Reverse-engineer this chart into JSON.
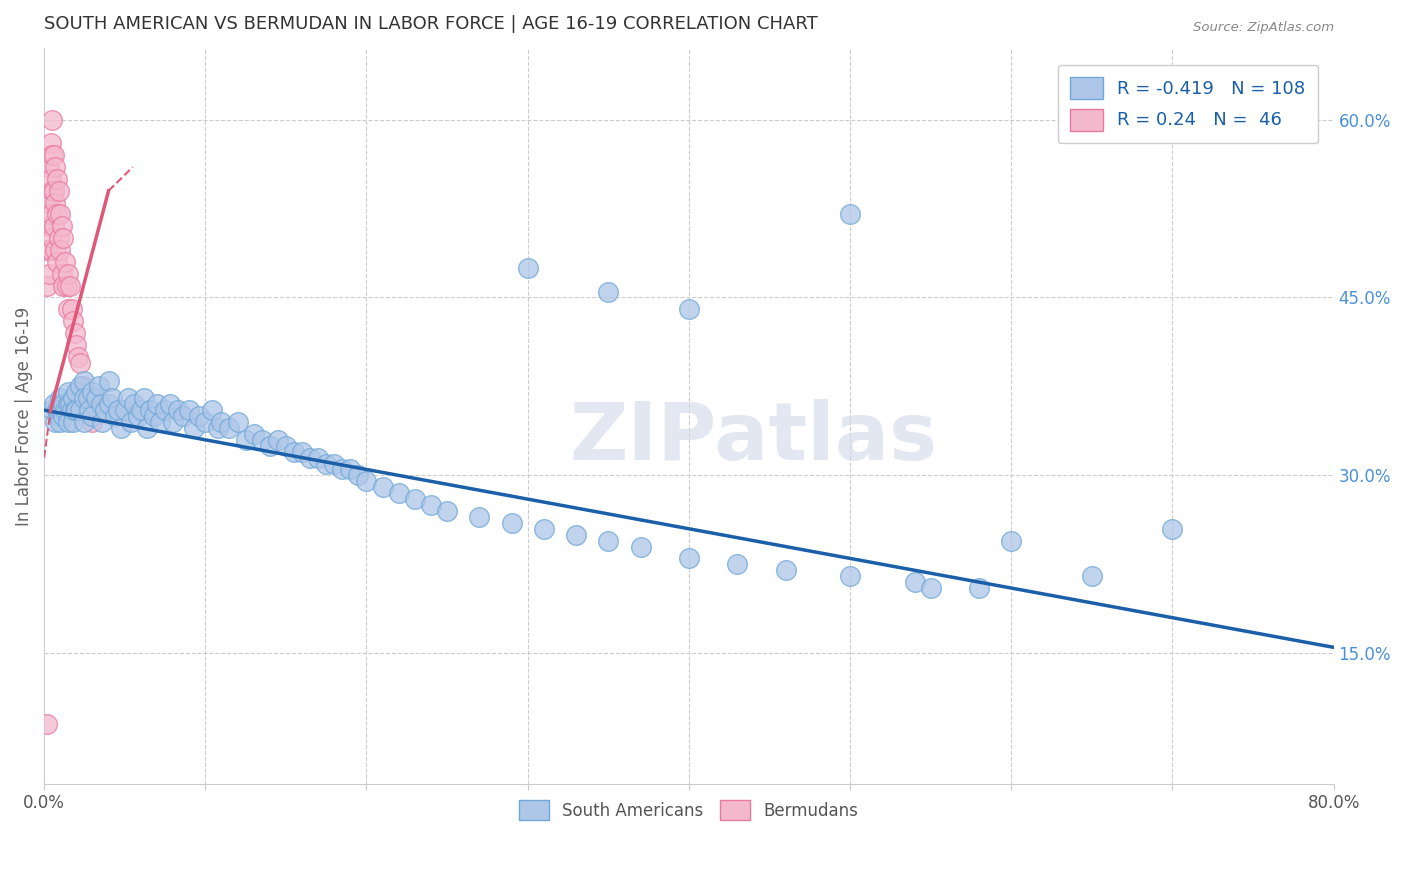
{
  "title": "SOUTH AMERICAN VS BERMUDAN IN LABOR FORCE | AGE 16-19 CORRELATION CHART",
  "source": "Source: ZipAtlas.com",
  "ylabel": "In Labor Force | Age 16-19",
  "xlim": [
    0.0,
    0.8
  ],
  "ylim": [
    0.04,
    0.66
  ],
  "xtick_pos": [
    0.0,
    0.1,
    0.2,
    0.3,
    0.4,
    0.5,
    0.6,
    0.7,
    0.8
  ],
  "xticklabels": [
    "0.0%",
    "",
    "",
    "",
    "",
    "",
    "",
    "",
    "80.0%"
  ],
  "yticks_right": [
    0.15,
    0.3,
    0.45,
    0.6
  ],
  "ytick_right_labels": [
    "15.0%",
    "30.0%",
    "45.0%",
    "60.0%"
  ],
  "blue_color": "#aec6e8",
  "blue_edge": "#6fa8d8",
  "pink_color": "#f4b8cc",
  "pink_edge": "#e87aa0",
  "blue_line_color": "#1a5fa8",
  "pink_line_color": "#e05878",
  "watermark": "ZIPatlas",
  "blue_R": -0.419,
  "blue_N": 108,
  "pink_R": 0.24,
  "pink_N": 46,
  "blue_line_x0": 0.0,
  "blue_line_y0": 0.355,
  "blue_line_x1": 0.8,
  "blue_line_y1": 0.155,
  "pink_line_x0": 0.0,
  "pink_line_y0": 0.315,
  "pink_line_x1": 0.055,
  "pink_line_y1": 0.56,
  "pink_line_solid_x0": 0.004,
  "pink_line_solid_y0": 0.355,
  "pink_line_solid_x1": 0.04,
  "pink_line_solid_y1": 0.54,
  "blue_scatter_x": [
    0.005,
    0.006,
    0.007,
    0.008,
    0.009,
    0.01,
    0.01,
    0.01,
    0.012,
    0.012,
    0.013,
    0.015,
    0.015,
    0.015,
    0.016,
    0.017,
    0.018,
    0.018,
    0.019,
    0.02,
    0.02,
    0.022,
    0.022,
    0.025,
    0.025,
    0.025,
    0.027,
    0.028,
    0.03,
    0.03,
    0.032,
    0.034,
    0.035,
    0.036,
    0.038,
    0.04,
    0.04,
    0.042,
    0.044,
    0.046,
    0.048,
    0.05,
    0.052,
    0.054,
    0.056,
    0.058,
    0.06,
    0.062,
    0.064,
    0.066,
    0.068,
    0.07,
    0.072,
    0.075,
    0.078,
    0.08,
    0.083,
    0.086,
    0.09,
    0.093,
    0.096,
    0.1,
    0.104,
    0.108,
    0.11,
    0.115,
    0.12,
    0.125,
    0.13,
    0.135,
    0.14,
    0.145,
    0.15,
    0.155,
    0.16,
    0.165,
    0.17,
    0.175,
    0.18,
    0.185,
    0.19,
    0.195,
    0.2,
    0.21,
    0.22,
    0.23,
    0.24,
    0.25,
    0.27,
    0.29,
    0.31,
    0.33,
    0.35,
    0.37,
    0.4,
    0.43,
    0.46,
    0.5,
    0.54,
    0.58,
    0.4,
    0.6,
    0.5,
    0.35,
    0.3,
    0.55,
    0.65,
    0.7
  ],
  "blue_scatter_y": [
    0.355,
    0.36,
    0.345,
    0.355,
    0.35,
    0.365,
    0.355,
    0.345,
    0.36,
    0.35,
    0.355,
    0.37,
    0.36,
    0.345,
    0.36,
    0.355,
    0.365,
    0.345,
    0.355,
    0.37,
    0.355,
    0.375,
    0.355,
    0.38,
    0.365,
    0.345,
    0.365,
    0.355,
    0.37,
    0.35,
    0.365,
    0.375,
    0.36,
    0.345,
    0.355,
    0.38,
    0.36,
    0.365,
    0.35,
    0.355,
    0.34,
    0.355,
    0.365,
    0.345,
    0.36,
    0.35,
    0.355,
    0.365,
    0.34,
    0.355,
    0.35,
    0.36,
    0.345,
    0.355,
    0.36,
    0.345,
    0.355,
    0.35,
    0.355,
    0.34,
    0.35,
    0.345,
    0.355,
    0.34,
    0.345,
    0.34,
    0.345,
    0.33,
    0.335,
    0.33,
    0.325,
    0.33,
    0.325,
    0.32,
    0.32,
    0.315,
    0.315,
    0.31,
    0.31,
    0.305,
    0.305,
    0.3,
    0.295,
    0.29,
    0.285,
    0.28,
    0.275,
    0.27,
    0.265,
    0.26,
    0.255,
    0.25,
    0.245,
    0.24,
    0.23,
    0.225,
    0.22,
    0.215,
    0.21,
    0.205,
    0.44,
    0.245,
    0.52,
    0.455,
    0.475,
    0.205,
    0.215,
    0.255
  ],
  "pink_scatter_x": [
    0.002,
    0.002,
    0.003,
    0.003,
    0.003,
    0.003,
    0.004,
    0.004,
    0.004,
    0.004,
    0.005,
    0.005,
    0.005,
    0.005,
    0.006,
    0.006,
    0.006,
    0.007,
    0.007,
    0.007,
    0.008,
    0.008,
    0.008,
    0.009,
    0.009,
    0.01,
    0.01,
    0.011,
    0.011,
    0.012,
    0.012,
    0.013,
    0.014,
    0.015,
    0.015,
    0.016,
    0.017,
    0.018,
    0.019,
    0.02,
    0.021,
    0.022,
    0.024,
    0.025,
    0.03,
    0.002
  ],
  "pink_scatter_y": [
    0.49,
    0.46,
    0.56,
    0.53,
    0.51,
    0.47,
    0.58,
    0.55,
    0.52,
    0.49,
    0.6,
    0.57,
    0.54,
    0.5,
    0.57,
    0.54,
    0.51,
    0.56,
    0.53,
    0.49,
    0.55,
    0.52,
    0.48,
    0.54,
    0.5,
    0.52,
    0.49,
    0.51,
    0.47,
    0.5,
    0.46,
    0.48,
    0.46,
    0.47,
    0.44,
    0.46,
    0.44,
    0.43,
    0.42,
    0.41,
    0.4,
    0.395,
    0.375,
    0.365,
    0.345,
    0.09
  ],
  "background_color": "#ffffff",
  "grid_color": "#cccccc",
  "title_color": "#333333",
  "axis_label_color": "#666666",
  "right_tick_color": "#4a90d9",
  "legend_label_color": "#1a5fa8"
}
